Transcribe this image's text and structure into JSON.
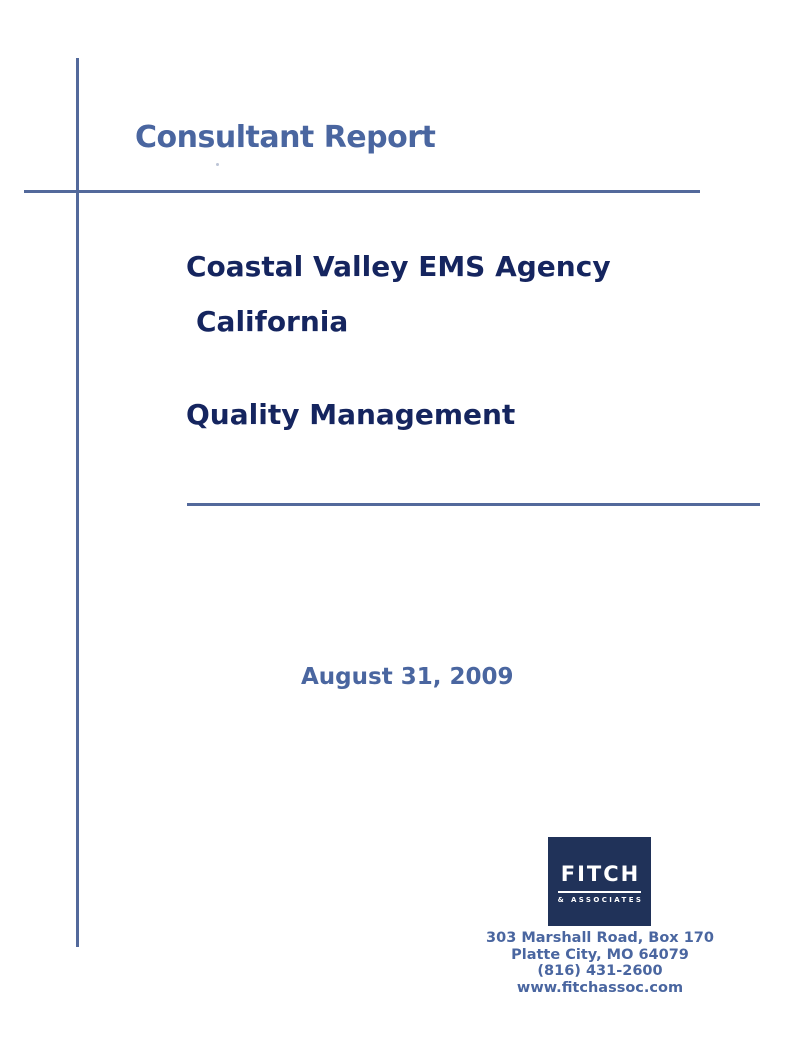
{
  "document": {
    "kicker": "Consultant Report",
    "title_lines": [
      "Coastal Valley EMS Agency",
      "California",
      "Quality Management"
    ],
    "date": "August 31, 2009"
  },
  "logo": {
    "wordmark": "FITCH",
    "tagline": "& ASSOCIATES"
  },
  "contact": {
    "address_line1": "303 Marshall Road, Box 170",
    "address_line2": "Platte City, MO 64079",
    "phone": "(816) 431-2600",
    "website": "www.fitchassoc.com"
  },
  "colors": {
    "slate_blue_text": "#4a66a0",
    "navy_title_text": "#15255f",
    "rule_line_blue": "#53699b",
    "logo_background_navy": "#203259",
    "logo_text_white": "#ffffff",
    "page_background": "#ffffff"
  }
}
